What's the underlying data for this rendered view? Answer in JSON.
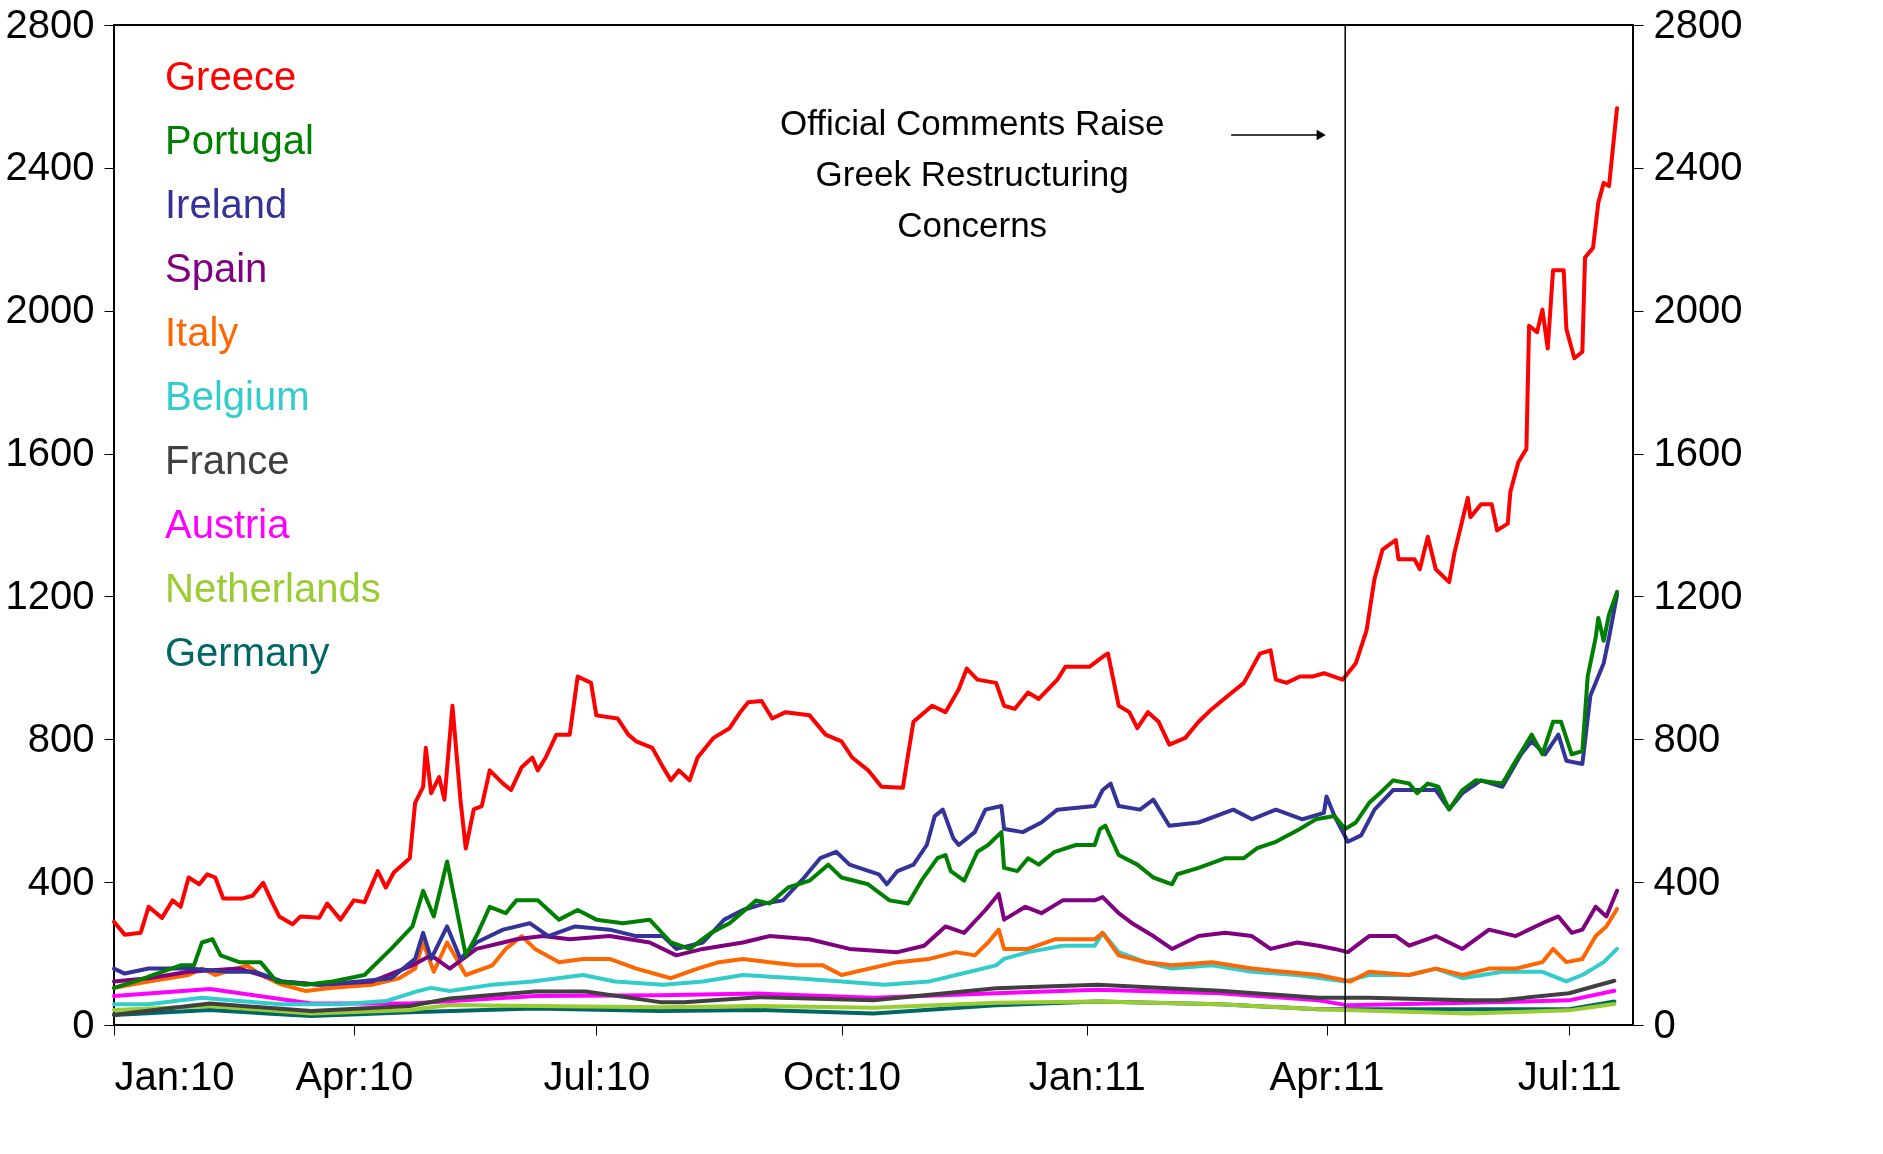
{
  "chart_data": {
    "type": "line",
    "xlim": [
      "2010-01-01",
      "2011-07-25"
    ],
    "xticks": [
      {
        "value": "2010-01-01",
        "label": "Jan:10"
      },
      {
        "value": "2010-04-01",
        "label": "Apr:10"
      },
      {
        "value": "2010-07-01",
        "label": "Jul:10"
      },
      {
        "value": "2010-10-01",
        "label": "Oct:10"
      },
      {
        "value": "2011-01-01",
        "label": "Jan:11"
      },
      {
        "value": "2011-04-01",
        "label": "Apr:11"
      },
      {
        "value": "2011-07-01",
        "label": "Jul:11"
      }
    ],
    "ylim": [
      0,
      2800
    ],
    "yticks": [
      0,
      400,
      800,
      1200,
      1600,
      2000,
      2400,
      2800
    ],
    "y2lim": [
      0,
      2800
    ],
    "y2ticks": [
      0,
      400,
      800,
      1200,
      1600,
      2000,
      2400,
      2800
    ],
    "legend": "top left",
    "ref_lines": [
      {
        "axis": "x",
        "value": "2011-04-08",
        "label": "Official Comments Raise\nGreek Restructuring\nConcerns",
        "color": "#000000"
      }
    ],
    "series": [
      {
        "name": "Greece",
        "color": "#ff0000",
        "x": [
          "2010-01-01",
          "2010-01-05",
          "2010-01-11",
          "2010-01-14",
          "2010-01-19",
          "2010-01-23",
          "2010-01-26",
          "2010-01-29",
          "2010-02-02",
          "2010-02-05",
          "2010-02-08",
          "2010-02-11",
          "2010-02-18",
          "2010-02-22",
          "2010-02-26",
          "2010-03-01",
          "2010-03-04",
          "2010-03-09",
          "2010-03-12",
          "2010-03-19",
          "2010-03-22",
          "2010-03-27",
          "2010-04-01",
          "2010-04-05",
          "2010-04-10",
          "2010-04-13",
          "2010-04-16",
          "2010-04-22",
          "2010-04-24",
          "2010-04-27",
          "2010-04-28",
          "2010-04-30",
          "2010-05-03",
          "2010-05-05",
          "2010-05-08",
          "2010-05-11",
          "2010-05-13",
          "2010-05-16",
          "2010-05-19",
          "2010-05-22",
          "2010-05-27",
          "2010-05-30",
          "2010-06-03",
          "2010-06-07",
          "2010-06-09",
          "2010-06-12",
          "2010-06-16",
          "2010-06-21",
          "2010-06-24",
          "2010-06-29",
          "2010-07-01",
          "2010-07-09",
          "2010-07-13",
          "2010-07-16",
          "2010-07-22",
          "2010-07-26",
          "2010-07-29",
          "2010-08-01",
          "2010-08-05",
          "2010-08-08",
          "2010-08-14",
          "2010-08-20",
          "2010-08-24",
          "2010-08-27",
          "2010-09-01",
          "2010-09-05",
          "2010-09-10",
          "2010-09-19",
          "2010-09-25",
          "2010-10-01",
          "2010-10-05",
          "2010-10-11",
          "2010-10-16",
          "2010-10-24",
          "2010-10-26",
          "2010-10-28",
          "2010-11-04",
          "2010-11-09",
          "2010-11-14",
          "2010-11-17",
          "2010-11-21",
          "2010-11-28",
          "2010-12-01",
          "2010-12-05",
          "2010-12-10",
          "2010-12-14",
          "2010-12-21",
          "2010-12-24",
          "2011-01-02",
          "2011-01-07",
          "2011-01-09",
          "2011-01-13",
          "2011-01-17",
          "2011-01-20",
          "2011-01-24",
          "2011-01-28",
          "2011-02-01",
          "2011-02-07",
          "2011-02-12",
          "2011-02-17",
          "2011-02-23",
          "2011-03-01",
          "2011-03-07",
          "2011-03-11",
          "2011-03-13",
          "2011-03-17",
          "2011-03-22",
          "2011-03-27",
          "2011-03-31",
          "2011-04-07",
          "2011-04-12",
          "2011-04-16",
          "2011-04-19",
          "2011-04-22",
          "2011-04-27",
          "2011-04-28",
          "2011-05-04",
          "2011-05-06",
          "2011-05-09",
          "2011-05-12",
          "2011-05-17",
          "2011-05-19",
          "2011-05-24",
          "2011-05-25",
          "2011-05-29",
          "2011-06-02",
          "2011-06-04",
          "2011-06-08",
          "2011-06-09",
          "2011-06-12",
          "2011-06-15",
          "2011-06-16",
          "2011-06-19",
          "2011-06-21",
          "2011-06-23",
          "2011-06-25",
          "2011-06-29",
          "2011-06-30",
          "2011-07-03",
          "2011-07-06",
          "2011-07-07",
          "2011-07-10",
          "2011-07-12",
          "2011-07-14",
          "2011-07-16",
          "2011-07-19"
        ],
        "values": [
          289,
          253,
          258,
          331,
          300,
          349,
          331,
          413,
          394,
          422,
          413,
          354,
          354,
          362,
          398,
          349,
          304,
          282,
          304,
          300,
          340,
          295,
          349,
          344,
          431,
          385,
          427,
          467,
          622,
          667,
          776,
          649,
          694,
          631,
          894,
          631,
          494,
          604,
          613,
          713,
          676,
          658,
          722,
          749,
          713,
          749,
          813,
          813,
          976,
          958,
          867,
          858,
          813,
          794,
          776,
          722,
          685,
          713,
          685,
          749,
          804,
          831,
          876,
          904,
          907,
          858,
          876,
          867,
          813,
          794,
          749,
          713,
          667,
          664,
          758,
          849,
          894,
          876,
          940,
          998,
          967,
          958,
          894,
          885,
          931,
          913,
          967,
          1003,
          1003,
          1031,
          1040,
          894,
          876,
          831,
          876,
          849,
          785,
          804,
          849,
          885,
          922,
          958,
          1040,
          1049,
          967,
          958,
          976,
          976,
          985,
          967,
          1013,
          1104,
          1249,
          1331,
          1358,
          1304,
          1304,
          1276,
          1367,
          1276,
          1240,
          1322,
          1476,
          1422,
          1458,
          1458,
          1385,
          1404,
          1494,
          1576,
          1613,
          1958,
          1940,
          2003,
          1894,
          2113,
          2113,
          1949,
          1867,
          1885,
          2149,
          2176,
          2303,
          2358,
          2349,
          2567
        ]
      },
      {
        "name": "Portugal",
        "color": "#008000",
        "x": [
          "2010-01-01",
          "2010-01-09",
          "2010-01-19",
          "2010-01-26",
          "2010-01-31",
          "2010-02-03",
          "2010-02-07",
          "2010-02-10",
          "2010-02-17",
          "2010-02-25",
          "2010-03-03",
          "2010-03-14",
          "2010-03-24",
          "2010-04-05",
          "2010-04-15",
          "2010-04-23",
          "2010-04-27",
          "2010-05-01",
          "2010-05-06",
          "2010-05-13",
          "2010-05-17",
          "2010-05-22",
          "2010-05-28",
          "2010-06-01",
          "2010-06-09",
          "2010-06-17",
          "2010-06-24",
          "2010-07-01",
          "2010-07-11",
          "2010-07-21",
          "2010-07-29",
          "2010-08-05",
          "2010-08-13",
          "2010-08-20",
          "2010-08-30",
          "2010-09-04",
          "2010-09-11",
          "2010-09-19",
          "2010-09-26",
          "2010-10-01",
          "2010-10-11",
          "2010-10-19",
          "2010-10-26",
          "2010-10-31",
          "2010-11-06",
          "2010-11-09",
          "2010-11-11",
          "2010-11-16",
          "2010-11-21",
          "2010-11-25",
          "2010-11-30",
          "2010-12-01",
          "2010-12-06",
          "2010-12-10",
          "2010-12-14",
          "2010-12-20",
          "2010-12-28",
          "2011-01-04",
          "2011-01-06",
          "2011-01-08",
          "2011-01-13",
          "2011-01-20",
          "2011-01-26",
          "2011-02-02",
          "2011-02-04",
          "2011-02-12",
          "2011-02-22",
          "2011-03-01",
          "2011-03-06",
          "2011-03-13",
          "2011-03-22",
          "2011-03-28",
          "2011-04-04",
          "2011-04-08",
          "2011-04-12",
          "2011-04-17",
          "2011-04-21",
          "2011-04-26",
          "2011-05-02",
          "2011-05-05",
          "2011-05-09",
          "2011-05-13",
          "2011-05-17",
          "2011-05-22",
          "2011-05-27",
          "2011-06-06",
          "2011-06-11",
          "2011-06-17",
          "2011-06-21",
          "2011-06-25",
          "2011-06-28",
          "2011-07-02",
          "2011-07-06",
          "2011-07-08",
          "2011-07-11",
          "2011-07-12",
          "2011-07-14",
          "2011-07-16",
          "2011-07-19"
        ],
        "values": [
          104,
          122,
          149,
          167,
          167,
          231,
          240,
          195,
          176,
          176,
          122,
          113,
          122,
          140,
          213,
          276,
          376,
          304,
          458,
          195,
          249,
          331,
          313,
          349,
          349,
          295,
          322,
          295,
          285,
          295,
          231,
          213,
          258,
          285,
          349,
          340,
          385,
          404,
          449,
          413,
          394,
          349,
          340,
          404,
          467,
          476,
          431,
          404,
          485,
          504,
          540,
          440,
          431,
          467,
          449,
          485,
          504,
          504,
          549,
          558,
          476,
          449,
          413,
          394,
          422,
          440,
          467,
          467,
          495,
          513,
          549,
          576,
          585,
          549,
          567,
          622,
          649,
          685,
          676,
          649,
          676,
          667,
          604,
          658,
          685,
          676,
          740,
          813,
          758,
          849,
          849,
          758,
          767,
          976,
          1085,
          1140,
          1076,
          1149,
          1213
        ]
      },
      {
        "name": "Ireland",
        "color": "#333399",
        "x": [
          "2010-01-01",
          "2010-01-05",
          "2010-01-14",
          "2010-01-29",
          "2010-02-13",
          "2010-02-23",
          "2010-03-05",
          "2010-03-19",
          "2010-04-03",
          "2010-04-15",
          "2010-04-24",
          "2010-04-27",
          "2010-04-30",
          "2010-05-06",
          "2010-05-11",
          "2010-05-17",
          "2010-05-27",
          "2010-06-06",
          "2010-06-13",
          "2010-06-23",
          "2010-07-06",
          "2010-07-16",
          "2010-07-26",
          "2010-07-31",
          "2010-08-10",
          "2010-08-18",
          "2010-08-25",
          "2010-09-02",
          "2010-09-09",
          "2010-09-17",
          "2010-09-23",
          "2010-09-29",
          "2010-10-04",
          "2010-10-15",
          "2010-10-18",
          "2010-10-22",
          "2010-10-28",
          "2010-11-02",
          "2010-11-05",
          "2010-11-08",
          "2010-11-12",
          "2010-11-14",
          "2010-11-20",
          "2010-11-24",
          "2010-11-30",
          "2010-12-01",
          "2010-12-08",
          "2010-12-15",
          "2010-12-21",
          "2011-01-04",
          "2011-01-07",
          "2011-01-10",
          "2011-01-13",
          "2011-01-21",
          "2011-01-26",
          "2011-02-01",
          "2011-02-12",
          "2011-02-25",
          "2011-03-04",
          "2011-03-13",
          "2011-03-23",
          "2011-03-31",
          "2011-04-01",
          "2011-04-04",
          "2011-04-09",
          "2011-04-14",
          "2011-04-19",
          "2011-04-26",
          "2011-05-05",
          "2011-05-12",
          "2011-05-17",
          "2011-05-22",
          "2011-05-29",
          "2011-06-06",
          "2011-06-13",
          "2011-06-17",
          "2011-06-22",
          "2011-06-27",
          "2011-06-30",
          "2011-07-06",
          "2011-07-09",
          "2011-07-14",
          "2011-07-16",
          "2011-07-19"
        ],
        "values": [
          158,
          144,
          158,
          158,
          149,
          149,
          122,
          113,
          122,
          131,
          185,
          258,
          185,
          276,
          185,
          231,
          267,
          285,
          249,
          276,
          267,
          249,
          249,
          213,
          231,
          295,
          322,
          340,
          349,
          413,
          467,
          485,
          449,
          422,
          394,
          431,
          449,
          504,
          585,
          603,
          522,
          504,
          540,
          603,
          613,
          549,
          540,
          567,
          603,
          613,
          658,
          676,
          613,
          603,
          631,
          558,
          567,
          603,
          576,
          603,
          576,
          594,
          640,
          585,
          513,
          531,
          603,
          658,
          658,
          658,
          604,
          649,
          685,
          667,
          758,
          795,
          758,
          813,
          740,
          731,
          922,
          1013,
          1085,
          1204
        ]
      },
      {
        "name": "Spain",
        "color": "#800080",
        "x": [
          "2010-01-01",
          "2010-01-14",
          "2010-01-29",
          "2010-02-17",
          "2010-03-05",
          "2010-03-19",
          "2010-04-08",
          "2010-04-23",
          "2010-04-30",
          "2010-05-07",
          "2010-05-17",
          "2010-06-01",
          "2010-06-11",
          "2010-06-21",
          "2010-07-06",
          "2010-07-21",
          "2010-07-31",
          "2010-08-10",
          "2010-08-25",
          "2010-09-04",
          "2010-09-19",
          "2010-10-04",
          "2010-10-22",
          "2010-11-01",
          "2010-11-09",
          "2010-11-16",
          "2010-11-24",
          "2010-11-29",
          "2010-12-01",
          "2010-12-09",
          "2010-12-15",
          "2010-12-23",
          "2011-01-04",
          "2011-01-07",
          "2011-01-13",
          "2011-01-18",
          "2011-01-26",
          "2011-02-02",
          "2011-02-12",
          "2011-02-22",
          "2011-03-04",
          "2011-03-11",
          "2011-03-21",
          "2011-03-29",
          "2011-04-04",
          "2011-04-09",
          "2011-04-17",
          "2011-04-27",
          "2011-05-02",
          "2011-05-12",
          "2011-05-22",
          "2011-06-01",
          "2011-06-11",
          "2011-06-21",
          "2011-06-27",
          "2011-07-02",
          "2011-07-06",
          "2011-07-11",
          "2011-07-15",
          "2011-07-19"
        ],
        "values": [
          122,
          131,
          149,
          158,
          122,
          113,
          122,
          167,
          195,
          158,
          213,
          240,
          249,
          240,
          249,
          231,
          195,
          213,
          231,
          249,
          240,
          213,
          204,
          222,
          276,
          258,
          322,
          367,
          295,
          331,
          313,
          349,
          349,
          358,
          313,
          285,
          249,
          213,
          249,
          258,
          249,
          213,
          231,
          222,
          213,
          204,
          249,
          249,
          222,
          249,
          213,
          267,
          249,
          285,
          304,
          258,
          267,
          331,
          304,
          376
        ]
      },
      {
        "name": "Italy",
        "color": "#ff6600",
        "x": [
          "2010-01-01",
          "2010-01-14",
          "2010-01-29",
          "2010-02-03",
          "2010-02-08",
          "2010-02-20",
          "2010-02-25",
          "2010-03-05",
          "2010-03-14",
          "2010-03-24",
          "2010-04-08",
          "2010-04-18",
          "2010-04-24",
          "2010-04-27",
          "2010-05-01",
          "2010-05-06",
          "2010-05-13",
          "2010-05-23",
          "2010-05-28",
          "2010-06-03",
          "2010-06-08",
          "2010-06-17",
          "2010-06-26",
          "2010-07-06",
          "2010-07-16",
          "2010-07-29",
          "2010-08-08",
          "2010-08-16",
          "2010-08-25",
          "2010-09-04",
          "2010-09-14",
          "2010-09-24",
          "2010-10-01",
          "2010-10-22",
          "2010-11-03",
          "2010-11-13",
          "2010-11-20",
          "2010-11-25",
          "2010-11-29",
          "2010-12-01",
          "2010-12-10",
          "2010-12-20",
          "2011-01-04",
          "2011-01-07",
          "2011-01-13",
          "2011-01-23",
          "2011-02-02",
          "2011-02-17",
          "2011-03-04",
          "2011-03-16",
          "2011-03-29",
          "2011-04-10",
          "2011-04-17",
          "2011-05-02",
          "2011-05-12",
          "2011-05-22",
          "2011-06-01",
          "2011-06-11",
          "2011-06-21",
          "2011-06-25",
          "2011-06-30",
          "2011-07-06",
          "2011-07-11",
          "2011-07-15",
          "2011-07-19"
        ],
        "values": [
          104,
          122,
          140,
          158,
          140,
          167,
          140,
          113,
          95,
          104,
          113,
          131,
          158,
          231,
          149,
          231,
          140,
          167,
          213,
          249,
          213,
          176,
          185,
          185,
          158,
          131,
          158,
          176,
          185,
          176,
          167,
          167,
          140,
          176,
          185,
          204,
          195,
          231,
          267,
          213,
          213,
          240,
          240,
          258,
          195,
          176,
          167,
          176,
          158,
          149,
          140,
          122,
          149,
          140,
          158,
          140,
          158,
          158,
          176,
          213,
          176,
          185,
          249,
          276,
          325
        ]
      },
      {
        "name": "Belgium",
        "color": "#33cccc",
        "x": [
          "2010-01-01",
          "2010-01-14",
          "2010-02-03",
          "2010-02-17",
          "2010-03-05",
          "2010-03-27",
          "2010-04-13",
          "2010-04-25",
          "2010-04-30",
          "2010-05-07",
          "2010-05-23",
          "2010-06-07",
          "2010-06-26",
          "2010-07-08",
          "2010-07-26",
          "2010-08-10",
          "2010-08-25",
          "2010-09-14",
          "2010-10-01",
          "2010-10-17",
          "2010-11-03",
          "2010-11-13",
          "2010-11-28",
          "2010-12-01",
          "2010-12-10",
          "2010-12-23",
          "2011-01-04",
          "2011-01-07",
          "2011-01-13",
          "2011-01-23",
          "2011-02-02",
          "2011-02-17",
          "2011-03-04",
          "2011-03-21",
          "2011-04-08",
          "2011-04-17",
          "2011-05-02",
          "2011-05-12",
          "2011-05-22",
          "2011-06-06",
          "2011-06-21",
          "2011-06-30",
          "2011-07-06",
          "2011-07-14",
          "2011-07-19"
        ],
        "values": [
          58,
          58,
          76,
          67,
          58,
          58,
          67,
          95,
          104,
          95,
          113,
          122,
          140,
          122,
          113,
          122,
          140,
          131,
          122,
          113,
          122,
          140,
          167,
          185,
          204,
          222,
          222,
          258,
          204,
          176,
          158,
          167,
          149,
          140,
          122,
          140,
          140,
          158,
          131,
          149,
          149,
          122,
          140,
          176,
          213
        ]
      },
      {
        "name": "France",
        "color": "#404040",
        "x": [
          "2010-01-01",
          "2010-02-06",
          "2010-03-16",
          "2010-04-22",
          "2010-05-07",
          "2010-06-08",
          "2010-06-27",
          "2010-07-25",
          "2010-08-03",
          "2010-08-31",
          "2010-10-13",
          "2010-11-28",
          "2011-01-05",
          "2011-02-20",
          "2011-03-29",
          "2011-04-17",
          "2011-05-24",
          "2011-06-05",
          "2011-07-01",
          "2011-07-18"
        ],
        "values": [
          29,
          60,
          39,
          53,
          74,
          94,
          94,
          64,
          64,
          78,
          69,
          103,
          113,
          96,
          76,
          76,
          69,
          69,
          89,
          124
        ]
      },
      {
        "name": "Austria",
        "color": "#ff00ff",
        "x": [
          "2010-01-01",
          "2010-02-06",
          "2010-03-16",
          "2010-04-22",
          "2010-06-08",
          "2010-07-25",
          "2010-08-31",
          "2010-10-13",
          "2010-11-28",
          "2011-01-05",
          "2011-02-20",
          "2011-03-29",
          "2011-04-09",
          "2011-05-24",
          "2011-07-01",
          "2011-07-18"
        ],
        "values": [
          81,
          101,
          60,
          60,
          81,
          83,
          88,
          76,
          89,
          99,
          89,
          69,
          55,
          62,
          69,
          96
        ]
      },
      {
        "name": "Netherlands",
        "color": "#99cc33",
        "x": [
          "2010-01-01",
          "2010-02-06",
          "2010-03-16",
          "2010-04-22",
          "2010-05-07",
          "2010-06-08",
          "2010-07-25",
          "2010-08-31",
          "2010-10-13",
          "2010-11-28",
          "2011-01-05",
          "2011-02-20",
          "2011-03-29",
          "2011-05-24",
          "2011-07-01",
          "2011-07-18"
        ],
        "values": [
          42,
          53,
          32,
          42,
          56,
          53,
          50,
          53,
          48,
          62,
          66,
          58,
          44,
          32,
          41,
          59
        ]
      },
      {
        "name": "Germany",
        "color": "#006666",
        "x": [
          "2010-01-01",
          "2010-02-06",
          "2010-03-16",
          "2010-04-22",
          "2010-06-08",
          "2010-07-25",
          "2010-08-31",
          "2010-10-13",
          "2010-11-28",
          "2011-01-05",
          "2011-02-20",
          "2011-03-29",
          "2011-05-24",
          "2011-07-01",
          "2011-07-18"
        ],
        "values": [
          28,
          42,
          25,
          36,
          46,
          39,
          42,
          32,
          55,
          66,
          58,
          44,
          44,
          44,
          66
        ]
      }
    ]
  }
}
